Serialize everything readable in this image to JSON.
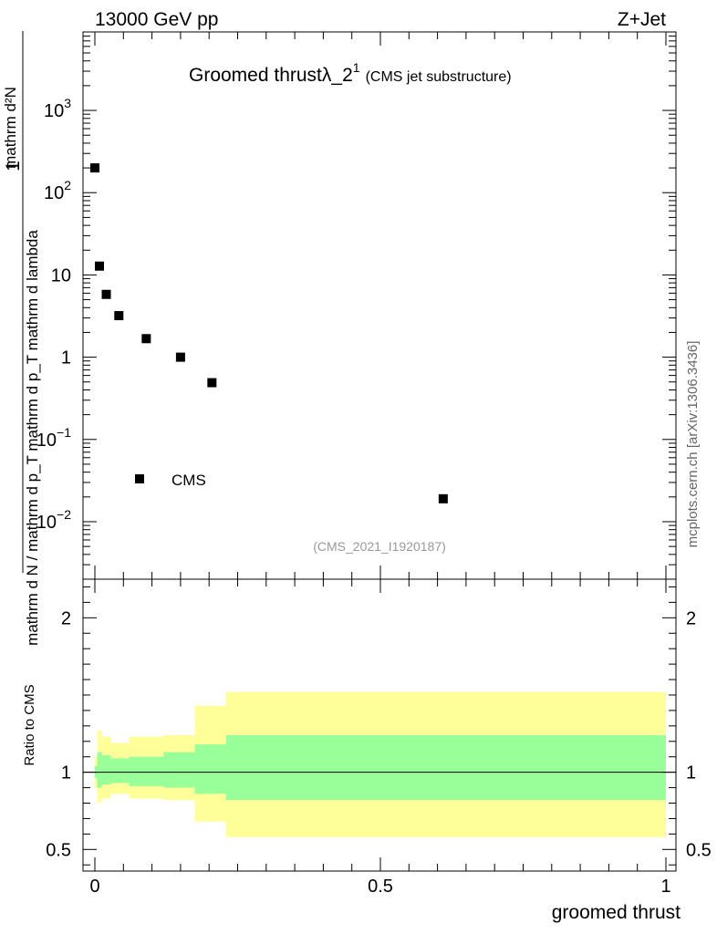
{
  "header": {
    "left": "13000 GeV pp",
    "right": "Z+Jet"
  },
  "side_label": "mcplots.cern.ch [arXiv:1306.3436]",
  "chart_data": [
    {
      "type": "scatter",
      "title": "Groomed thrustλ_2",
      "title_superscript": "1",
      "subtitle": "(CMS jet substructure)",
      "analysis_id": "(CMS_2021_I1920187)",
      "xlabel": "groomed thrust",
      "ylabel": {
        "numerator": "1",
        "denominator": "mathrm d N / mathrm d p_T mathrm d p_T mathrm d lambda",
        "fraction_numerator": "mathrm d²N"
      },
      "yscale": "log",
      "xlim": [
        0,
        1
      ],
      "ylim": [
        0.002,
        9000
      ],
      "legend": {
        "entry": "CMS",
        "placement": "bottom-left"
      },
      "y_ticks": [
        {
          "value": 0.01,
          "base": "10",
          "exp": "−2"
        },
        {
          "value": 0.1,
          "base": "10",
          "exp": "−1"
        },
        {
          "value": 1,
          "base": "1",
          "exp": ""
        },
        {
          "value": 10,
          "base": "10",
          "exp": ""
        },
        {
          "value": 100,
          "base": "10",
          "exp": "2"
        },
        {
          "value": 1000,
          "base": "10",
          "exp": "3"
        }
      ],
      "series": [
        {
          "name": "CMS",
          "points": [
            {
              "x": 0.0,
              "y": 200
            },
            {
              "x": 0.008,
              "y": 12.8
            },
            {
              "x": 0.02,
              "y": 5.8
            },
            {
              "x": 0.042,
              "y": 3.2
            },
            {
              "x": 0.09,
              "y": 1.68
            },
            {
              "x": 0.15,
              "y": 1.0
            },
            {
              "x": 0.205,
              "y": 0.49
            },
            {
              "x": 0.61,
              "y": 0.019
            }
          ]
        }
      ]
    },
    {
      "type": "area",
      "ylabel": "Ratio to CMS",
      "xlabel": "groomed thrust",
      "xlim": [
        0,
        1
      ],
      "ylim": [
        0.36,
        2.25
      ],
      "x_ticks": [
        {
          "value": 0,
          "label": "0"
        },
        {
          "value": 0.5,
          "label": "0.5"
        },
        {
          "value": 1,
          "label": "1"
        }
      ],
      "y_ticks": [
        {
          "value": 0.5,
          "label": "0.5"
        },
        {
          "value": 1,
          "label": "1"
        },
        {
          "value": 2,
          "label": "2"
        }
      ],
      "reference_line": 1,
      "bands": [
        {
          "name": "outer",
          "color": "#ffff99",
          "bins": [
            {
              "x0": 0.0,
              "x1": 0.004,
              "lo": 0.9,
              "hi": 1.1
            },
            {
              "x0": 0.004,
              "x1": 0.012,
              "lo": 0.8,
              "hi": 1.27
            },
            {
              "x0": 0.012,
              "x1": 0.028,
              "lo": 0.83,
              "hi": 1.23
            },
            {
              "x0": 0.028,
              "x1": 0.06,
              "lo": 0.86,
              "hi": 1.19
            },
            {
              "x0": 0.06,
              "x1": 0.12,
              "lo": 0.83,
              "hi": 1.23
            },
            {
              "x0": 0.12,
              "x1": 0.175,
              "lo": 0.82,
              "hi": 1.24
            },
            {
              "x0": 0.175,
              "x1": 0.23,
              "lo": 0.68,
              "hi": 1.43
            },
            {
              "x0": 0.23,
              "x1": 1.0,
              "lo": 0.58,
              "hi": 1.52
            }
          ]
        },
        {
          "name": "inner",
          "color": "#99ff99",
          "bins": [
            {
              "x0": 0.0,
              "x1": 0.004,
              "lo": 0.96,
              "hi": 1.04
            },
            {
              "x0": 0.004,
              "x1": 0.012,
              "lo": 0.9,
              "hi": 1.13
            },
            {
              "x0": 0.012,
              "x1": 0.028,
              "lo": 0.92,
              "hi": 1.11
            },
            {
              "x0": 0.028,
              "x1": 0.06,
              "lo": 0.93,
              "hi": 1.09
            },
            {
              "x0": 0.06,
              "x1": 0.12,
              "lo": 0.91,
              "hi": 1.1
            },
            {
              "x0": 0.12,
              "x1": 0.175,
              "lo": 0.9,
              "hi": 1.13
            },
            {
              "x0": 0.175,
              "x1": 0.23,
              "lo": 0.86,
              "hi": 1.18
            },
            {
              "x0": 0.23,
              "x1": 1.0,
              "lo": 0.82,
              "hi": 1.24
            }
          ]
        }
      ]
    }
  ]
}
